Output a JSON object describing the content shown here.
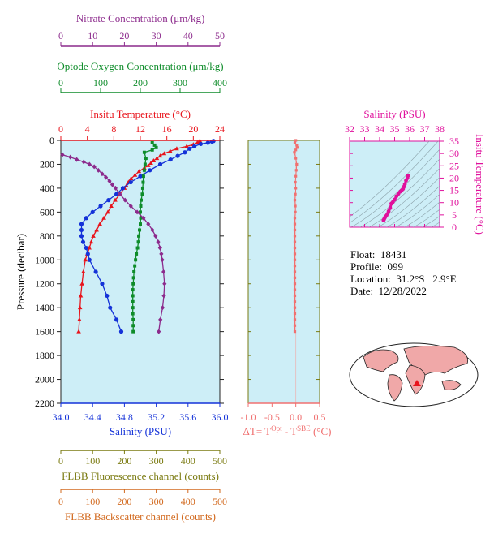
{
  "info": {
    "float": "Float:  18431",
    "profile": "Profile:  099",
    "location": "Location:  31.2°S   2.9°E",
    "date": "Date:  12/28/2022"
  },
  "colors": {
    "temperature": "#e8141c",
    "salinity": "#1432d8",
    "oxygen": "#0e8c2a",
    "nitrate": "#8c2a8c",
    "fluorescence": "#7a7a10",
    "backscatter": "#d2691e",
    "delta_t": "#f07070",
    "ts": "#e0109c",
    "panel_bg": "#cdeef7"
  },
  "chart_data": [
    {
      "type": "line",
      "panel": "main profile",
      "ylabel": "Pressure (decibar)",
      "ylim": [
        2200,
        0
      ],
      "yticks": [
        "0",
        "200",
        "400",
        "600",
        "800",
        "1000",
        "1200",
        "1400",
        "1600",
        "1800",
        "2000",
        "2200"
      ],
      "axes": {
        "nitrate": {
          "label": "Nitrate Concentration (μm/kg)",
          "lim": [
            0,
            50
          ],
          "ticks": [
            "0",
            "10",
            "20",
            "30",
            "40",
            "50"
          ]
        },
        "oxygen": {
          "label": "Optode Oxygen Concentration (μm/kg)",
          "lim": [
            0,
            400
          ],
          "ticks": [
            "0",
            "100",
            "200",
            "300",
            "400"
          ]
        },
        "temperature": {
          "label": "Insitu Temperature (°C)",
          "lim": [
            0,
            24
          ],
          "ticks": [
            "0",
            "4",
            "8",
            "12",
            "16",
            "20",
            "24"
          ]
        },
        "salinity": {
          "label": "Salinity (PSU)",
          "lim": [
            34.0,
            36.0
          ],
          "ticks": [
            "34.0",
            "34.4",
            "34.8",
            "35.2",
            "35.6",
            "36.0"
          ]
        },
        "fluorescence": {
          "label": "FLBB Fluorescence channel (counts)",
          "lim": [
            0,
            500
          ],
          "ticks": [
            "0",
            "100",
            "200",
            "300",
            "400",
            "500"
          ]
        },
        "backscatter": {
          "label": "FLBB Backscatter channel (counts)",
          "lim": [
            0,
            500
          ],
          "ticks": [
            "0",
            "100",
            "200",
            "300",
            "400",
            "500"
          ]
        }
      },
      "series": [
        {
          "axis": "temperature",
          "p": [
            5,
            10,
            20,
            35,
            50,
            70,
            90,
            110,
            130,
            150,
            170,
            190,
            210,
            230,
            260,
            290,
            320,
            350,
            380,
            400,
            450,
            500,
            550,
            600,
            650,
            700,
            750,
            800,
            850,
            900,
            950,
            1000,
            1100,
            1200,
            1300,
            1400,
            1500,
            1600
          ],
          "v": [
            21.0,
            20.9,
            20.6,
            20.0,
            19.0,
            17.5,
            16.5,
            15.6,
            15.0,
            14.5,
            14.0,
            13.6,
            13.2,
            12.6,
            11.8,
            11.2,
            10.6,
            10.2,
            9.9,
            9.6,
            8.9,
            8.2,
            7.6,
            7.1,
            6.5,
            5.9,
            5.4,
            4.9,
            4.6,
            4.3,
            4.0,
            3.7,
            3.4,
            3.2,
            3.0,
            2.9,
            2.8,
            2.7
          ]
        },
        {
          "axis": "salinity",
          "p": [
            5,
            10,
            20,
            30,
            50,
            70,
            100,
            130,
            160,
            200,
            250,
            300,
            350,
            400,
            450,
            500,
            550,
            600,
            650,
            700,
            750,
            800,
            850,
            900,
            950,
            1000,
            1100,
            1200,
            1300,
            1400,
            1500,
            1600
          ],
          "v": [
            35.92,
            35.9,
            35.85,
            35.76,
            35.68,
            35.62,
            35.56,
            35.47,
            35.38,
            35.25,
            35.12,
            35.0,
            34.88,
            34.78,
            34.7,
            34.6,
            34.5,
            34.4,
            34.32,
            34.26,
            34.26,
            34.26,
            34.28,
            34.32,
            34.34,
            34.36,
            34.44,
            34.52,
            34.58,
            34.62,
            34.7,
            34.76
          ]
        },
        {
          "axis": "oxygen",
          "p": [
            20,
            40,
            60,
            80,
            100,
            150,
            200,
            250,
            300,
            350,
            400,
            450,
            500,
            550,
            600,
            650,
            700,
            750,
            800,
            850,
            900,
            950,
            1000,
            1050,
            1100,
            1150,
            1200,
            1250,
            1300,
            1350,
            1400,
            1450,
            1500,
            1550,
            1600
          ],
          "v": [
            230,
            236,
            240,
            230,
            210,
            214,
            212,
            210,
            208,
            207,
            206,
            205,
            202,
            201,
            200,
            201,
            200,
            198,
            196,
            195,
            193,
            190,
            188,
            186,
            184,
            183,
            182,
            181,
            181,
            181,
            181,
            181,
            182,
            182,
            182
          ]
        },
        {
          "axis": "nitrate",
          "p": [
            120,
            140,
            160,
            180,
            200,
            220,
            250,
            280,
            310,
            340,
            370,
            400,
            450,
            500,
            550,
            600,
            650,
            700,
            750,
            800,
            850,
            900,
            950,
            1000,
            1100,
            1200,
            1300,
            1400,
            1500,
            1600
          ],
          "v": [
            0.5,
            3.0,
            5.0,
            7.2,
            9.0,
            10.5,
            11.8,
            13.0,
            14.2,
            15.3,
            16.2,
            17.2,
            18.6,
            20.2,
            22.0,
            24.0,
            26.0,
            27.5,
            28.8,
            29.8,
            30.6,
            31.2,
            31.6,
            31.9,
            32.3,
            32.6,
            32.4,
            32.0,
            31.3,
            30.8
          ]
        }
      ]
    },
    {
      "type": "line",
      "panel": "delta T",
      "xlabel": "ΔT= T^Opt - T^SBE (°C)",
      "xlim": [
        -1.0,
        0.5
      ],
      "xticks": [
        "-1.0",
        "-0.5",
        "0.0",
        "0.5"
      ],
      "series": [
        {
          "name": "ΔT",
          "p": [
            0,
            20,
            40,
            60,
            80,
            100,
            150,
            200,
            250,
            300,
            350,
            400,
            450,
            500,
            550,
            600,
            650,
            700,
            750,
            800,
            850,
            900,
            950,
            1000,
            1050,
            1100,
            1150,
            1200,
            1250,
            1300,
            1350,
            1400,
            1450,
            1500,
            1550,
            1600
          ],
          "v": [
            0.0,
            -0.02,
            0.02,
            0.03,
            0.0,
            -0.03,
            0.0,
            0.02,
            0.01,
            0.0,
            -0.01,
            0.0,
            -0.01,
            -0.02,
            -0.01,
            -0.01,
            -0.02,
            -0.02,
            -0.02,
            -0.02,
            -0.02,
            -0.02,
            -0.02,
            -0.02,
            -0.02,
            -0.02,
            -0.02,
            -0.02,
            -0.02,
            -0.02,
            -0.02,
            -0.02,
            -0.02,
            -0.02,
            -0.02,
            -0.02
          ]
        }
      ]
    },
    {
      "type": "scatter",
      "panel": "T-S diagram",
      "xlabel": "Salinity (PSU)",
      "ylabel": "Insitu Temperature (°C)",
      "xlim": [
        32,
        38
      ],
      "ylim": [
        0,
        35
      ],
      "xticks": [
        "32",
        "33",
        "34",
        "35",
        "36",
        "37",
        "38"
      ],
      "yticks": [
        "0",
        "5",
        "10",
        "15",
        "20",
        "25",
        "30",
        "35"
      ],
      "points": {
        "s": [
          34.26,
          34.3,
          34.36,
          34.44,
          34.52,
          34.6,
          34.7,
          34.78,
          34.88,
          35.0,
          35.12,
          35.25,
          35.38,
          35.47,
          35.56,
          35.62,
          35.68,
          35.76,
          35.85,
          35.9
        ],
        "t": [
          2.8,
          3.3,
          4.0,
          4.6,
          5.4,
          6.5,
          7.8,
          9.6,
          10.2,
          11.2,
          12.6,
          13.6,
          14.5,
          15.0,
          15.6,
          16.5,
          17.5,
          19.0,
          20.0,
          21.0
        ]
      }
    }
  ]
}
